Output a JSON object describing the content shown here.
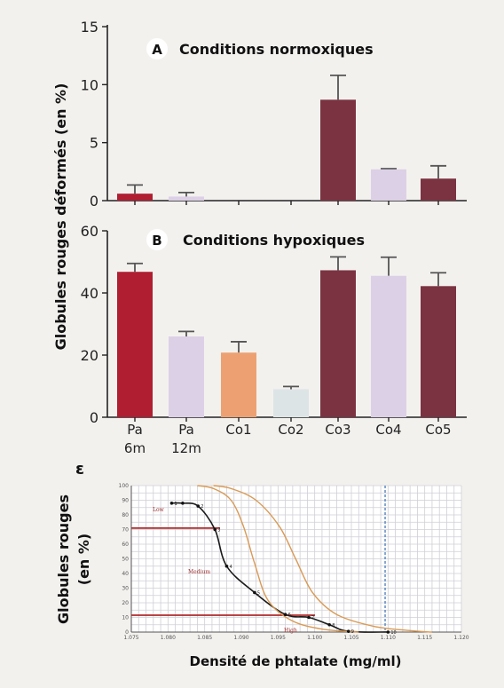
{
  "y_axis_title": "Globules rouges déformés (en %)",
  "panel_a": {
    "letter": "A",
    "title": "Conditions normoxiques"
  },
  "panel_b": {
    "letter": "B",
    "title": "Conditions hypoxiques"
  },
  "panel_c": {
    "letter": "ε",
    "ylabel_line1": "Globules rouges",
    "ylabel_line2": "(en %)",
    "xlabel": "Densité de phtalate (mg/ml)",
    "zone_low": "Low",
    "zone_medium": "Medium",
    "zone_high": "High"
  },
  "colors": {
    "pa6m": "#b01e32",
    "pa12m": "#dcd0e6",
    "co1": "#eda173",
    "co2": "#dde4e6",
    "co3": "#7b3341",
    "co4": "#dcd0e6",
    "co5": "#7b3341",
    "orange_curve": "#d99a55",
    "black_curve": "#1a1a1a",
    "red_line": "#b02a2a",
    "blue_dash": "#3b6fb5"
  },
  "chart_data": [
    {
      "type": "bar",
      "panel": "A",
      "title": "Conditions normoxiques",
      "ylim": [
        0,
        15
      ],
      "yticks": [
        "0",
        "5",
        "10",
        "15"
      ],
      "categories": [
        "Pa 6m",
        "Pa 12m",
        "Co1",
        "Co2",
        "Co3",
        "Co4",
        "Co5"
      ],
      "values": [
        0.6,
        0.35,
        0,
        0,
        8.7,
        2.7,
        1.9
      ],
      "errors": [
        0.75,
        0.35,
        0,
        0,
        2.1,
        0.05,
        1.1
      ]
    },
    {
      "type": "bar",
      "panel": "B",
      "title": "Conditions hypoxiques",
      "ylim": [
        0,
        60
      ],
      "yticks": [
        "0",
        "20",
        "40",
        "60"
      ],
      "categories": [
        "Pa 6m",
        "Pa 12m",
        "Co1",
        "Co2",
        "Co3",
        "Co4",
        "Co5"
      ],
      "category_lines": [
        [
          "Pa",
          "6m"
        ],
        [
          "Pa",
          "12m"
        ],
        [
          "Co1"
        ],
        [
          "Co2"
        ],
        [
          "Co3"
        ],
        [
          "Co4"
        ],
        [
          "Co5"
        ]
      ],
      "values": [
        46.8,
        26,
        20.8,
        9,
        47.3,
        45.5,
        42.2
      ],
      "errors": [
        2.7,
        1.6,
        3.5,
        0.9,
        4.3,
        6.0,
        4.3
      ]
    },
    {
      "type": "line",
      "panel": "C",
      "xlabel": "Densité de phtalate (mg/ml)",
      "ylabel": "Globules rouges (en %)",
      "xlim": [
        1.075,
        1.12
      ],
      "ylim": [
        0,
        100
      ],
      "xticks": [
        "1.075",
        "1.080",
        "1.085",
        "1.090",
        "1.095",
        "1.100",
        "1.105",
        "1.110",
        "1.115",
        "1.120"
      ],
      "yticks": [
        "0",
        "10",
        "20",
        "30",
        "40",
        "50",
        "60",
        "70",
        "80",
        "90",
        "100"
      ],
      "series": [
        {
          "x": [
            1.0805,
            1.082,
            1.0841,
            1.0864,
            1.088,
            1.0918,
            1.096,
            1.0992,
            1.102,
            1.1046,
            1.11
          ],
          "y": [
            88,
            88,
            86,
            70,
            45,
            27,
            12,
            10,
            5,
            0.5,
            0
          ],
          "point_labels": [
            "1",
            "",
            "2",
            "3",
            "4",
            "5",
            "6",
            "7",
            "8",
            "9",
            "10"
          ]
        },
        {
          "x": [
            1.084,
            1.0862,
            1.0886,
            1.0903,
            1.0918,
            1.0936,
            1.0968,
            1.101,
            1.106
          ],
          "y": [
            100,
            98,
            90,
            72,
            47,
            22,
            8,
            2,
            0
          ]
        },
        {
          "x": [
            1.0862,
            1.0886,
            1.092,
            1.0952,
            1.0974,
            1.0997,
            1.103,
            1.108,
            1.113,
            1.116
          ],
          "y": [
            100,
            98,
            90,
            72,
            50,
            27,
            12,
            4,
            1,
            0
          ]
        }
      ],
      "hlines": [
        71,
        11.5
      ],
      "vline_x": 1.1096
    }
  ]
}
